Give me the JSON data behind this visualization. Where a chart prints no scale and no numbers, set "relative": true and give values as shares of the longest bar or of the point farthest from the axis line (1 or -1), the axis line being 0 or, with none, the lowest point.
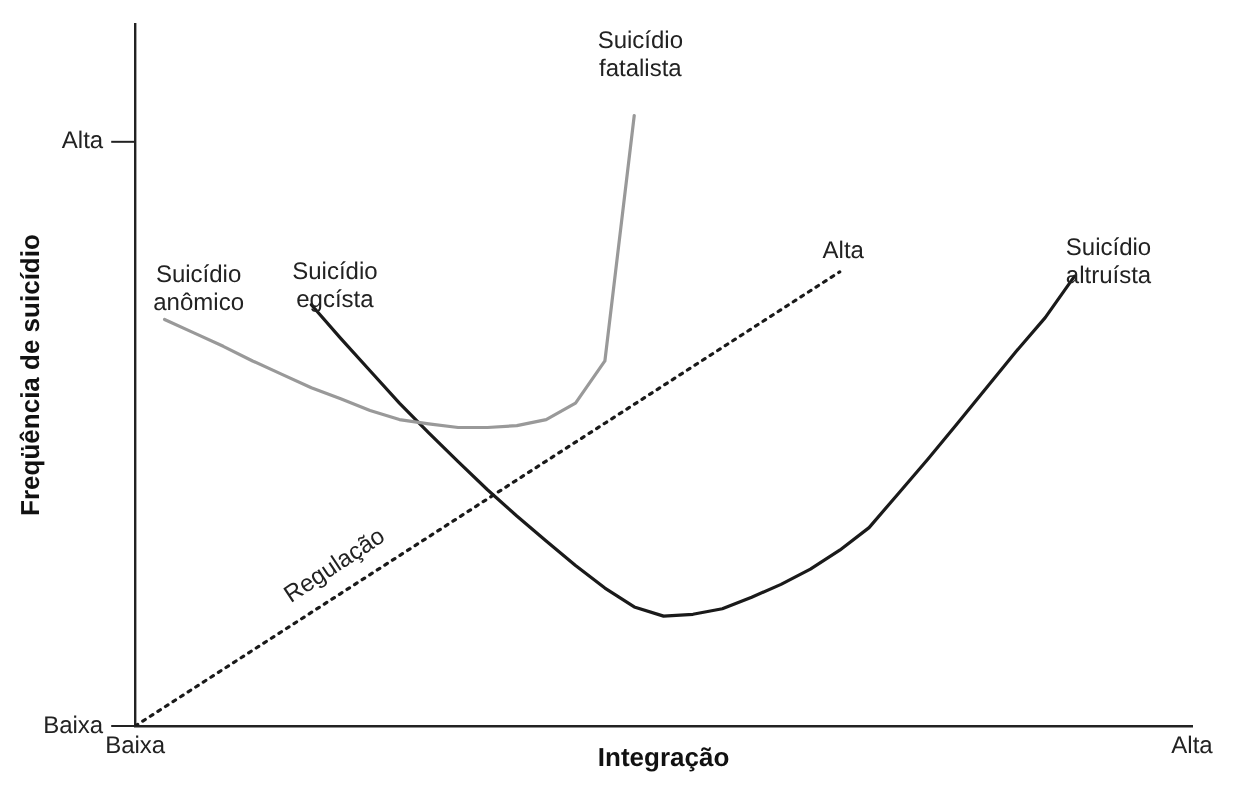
{
  "chart_data": {
    "type": "line",
    "relative": true,
    "xlabel": "Integração",
    "ylabel": "Freqüência de suicídio",
    "categories": [
      "Baixa",
      null,
      null,
      null,
      null,
      null,
      null,
      null,
      null,
      null,
      null,
      null,
      null,
      null,
      null,
      null,
      null,
      null,
      null,
      null,
      null,
      null,
      null,
      null,
      null,
      null,
      null,
      null,
      null,
      null,
      null,
      null,
      null,
      null,
      null,
      null,
      "Alta"
    ],
    "grid": false,
    "legend": false,
    "marker": "none",
    "series": [
      {
        "color": "#999999",
        "line_style": "solid",
        "values": [
          null,
          0.666,
          0.644,
          0.622,
          0.598,
          0.576,
          0.554,
          0.536,
          0.517,
          0.502,
          0.495,
          0.489,
          0.489,
          0.492,
          0.502,
          0.529,
          0.598,
          1,
          null,
          null,
          null,
          null,
          null,
          null,
          null,
          null,
          null,
          null,
          null,
          null,
          null,
          null,
          null,
          null,
          null,
          null,
          null
        ]
      },
      {
        "color": "#1a1a1a",
        "line_style": "solid",
        "values": [
          null,
          null,
          null,
          null,
          null,
          null,
          0.69,
          0.635,
          0.582,
          0.529,
          0.48,
          0.433,
          0.387,
          0.344,
          0.303,
          0.263,
          0.226,
          0.195,
          0.18,
          0.183,
          0.192,
          0.211,
          0.232,
          0.257,
          0.288,
          0.325,
          0.381,
          0.437,
          0.495,
          0.554,
          0.613,
          0.669,
          0.737,
          null,
          null,
          null,
          null
        ]
      },
      {
        "color": "#1a1a1a",
        "line_style": "dotted",
        "values": [
          0,
          0.031,
          0.062,
          0.093,
          0.124,
          0.155,
          0.186,
          0.217,
          0.248,
          0.279,
          0.31,
          0.341,
          0.372,
          0.403,
          0.434,
          0.465,
          0.496,
          0.527,
          0.558,
          0.589,
          0.62,
          0.651,
          0.682,
          0.713,
          0.744,
          null,
          null,
          null,
          null,
          null,
          null,
          null,
          null,
          null,
          null,
          null,
          null
        ]
      }
    ],
    "annotations": [
      "Suicídio\nfatalista",
      "Suicídio\nanômico",
      "Suicídio\negcísta",
      "Alta",
      "Suicídio\naltruísta",
      "Regulação",
      "Baixa",
      "Alta"
    ]
  }
}
